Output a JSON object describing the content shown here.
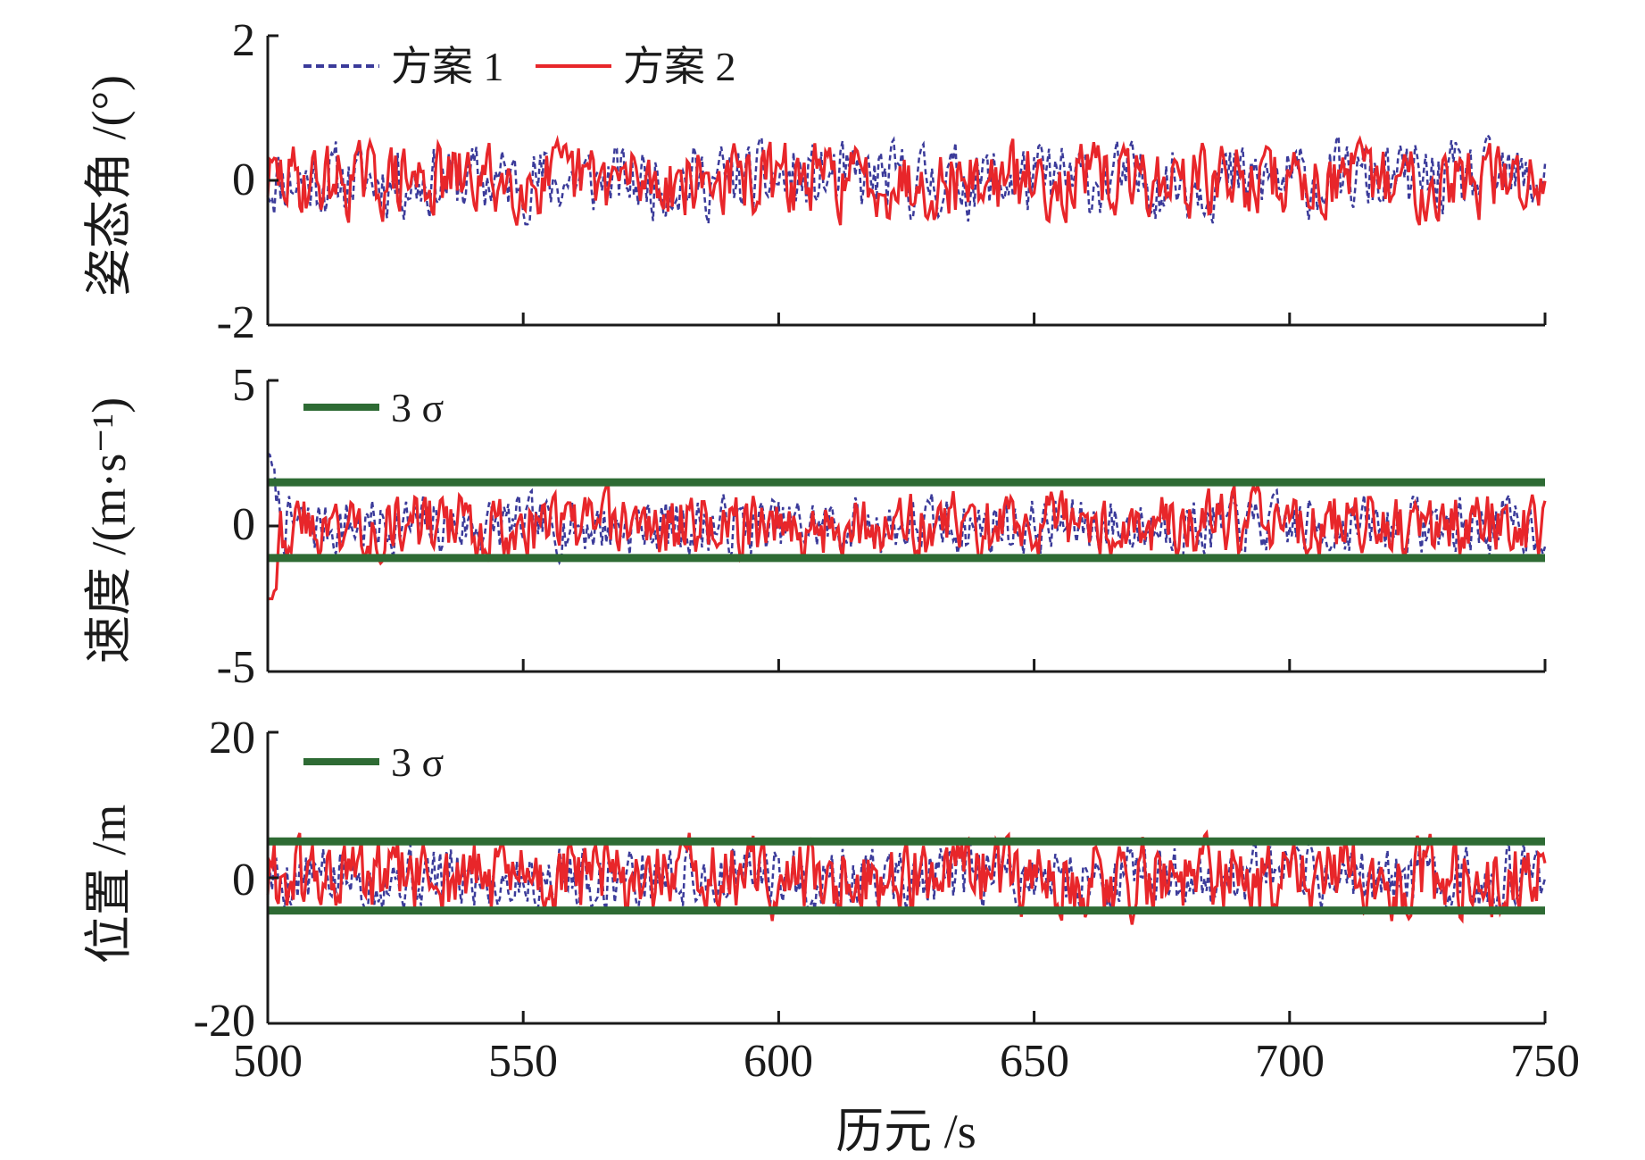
{
  "chart_data": {
    "type": "line",
    "xlabel": "历元 /s",
    "xlim": [
      500,
      750
    ],
    "xticks": [
      500,
      550,
      600,
      650,
      700,
      750
    ],
    "grid": false,
    "panels": [
      {
        "ylabel": "姿态角 /(°)",
        "ylim": [
          -2,
          2
        ],
        "yticks": [
          2,
          0,
          -2
        ],
        "legend_position": "top-left",
        "series": [
          {
            "name": "方案 1",
            "style": "dashed",
            "color": "#3b3b9a",
            "amplitude": 0.45,
            "seed": 11
          },
          {
            "name": "方案 2",
            "style": "solid",
            "color": "#e8262a",
            "amplitude": 0.45,
            "seed": 29
          }
        ],
        "bands": []
      },
      {
        "ylabel": "速度 /(m·s⁻¹)",
        "ylim": [
          -5,
          5
        ],
        "yticks": [
          5,
          0,
          -5
        ],
        "legend_position": "top-left",
        "series": [
          {
            "style": "dashed",
            "color": "#3b3b9a",
            "amplitude": 0.9,
            "seed": 7,
            "start_spike": 2.6
          },
          {
            "style": "solid",
            "color": "#e8262a",
            "amplitude": 1.0,
            "seed": 43,
            "start_spike": -3.1
          }
        ],
        "bands": [
          {
            "name": "3 σ",
            "upper": 1.5,
            "lower": -1.1,
            "color": "#2e6b34"
          }
        ]
      },
      {
        "ylabel": "位置 /m",
        "ylim": [
          -20,
          20
        ],
        "yticks": [
          20,
          0,
          -20
        ],
        "legend_position": "top-left",
        "series": [
          {
            "style": "dashed",
            "color": "#3b3b9a",
            "amplitude": 4.0,
            "seed": 5
          },
          {
            "style": "solid",
            "color": "#e8262a",
            "amplitude": 4.8,
            "seed": 61
          }
        ],
        "bands": [
          {
            "name": "3 σ",
            "upper": 5.0,
            "lower": -4.5,
            "color": "#2e6b34"
          }
        ]
      }
    ]
  },
  "legend": {
    "series1_label": "方案 1",
    "series2_label": "方案 2",
    "band_label_panel2": "3 σ",
    "band_label_panel3": "3 σ"
  }
}
